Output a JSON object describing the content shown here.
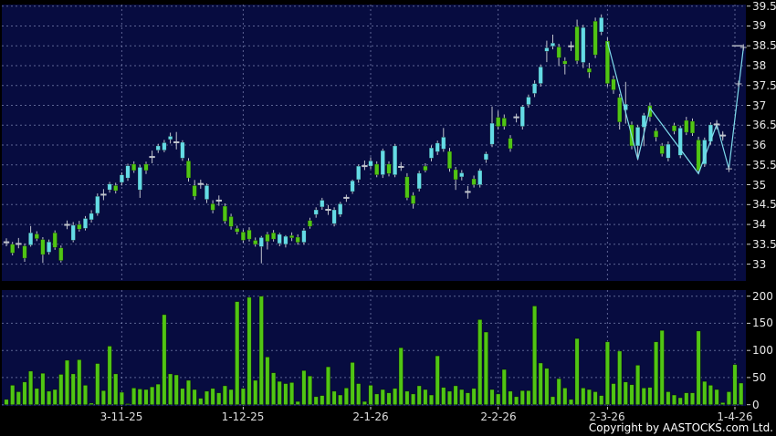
{
  "copyright": "Copyright by AASTOCKS.com Ltd.",
  "colors": {
    "background": "#000000",
    "pane_bg": "#070c40",
    "up": "#64dbe6",
    "down": "#50c514",
    "wick": "#c0c4cc",
    "doji": "#c0c4cc",
    "grid": "#8a93c0",
    "axis_text": "#e8e8e8",
    "date_text": "#dcdcdc",
    "line": "#7fdcec",
    "copyright_text": "#ffffff"
  },
  "chart_data": {
    "type": "candlestick",
    "title": "",
    "legend": "none",
    "grid": "dashed",
    "price_axis": {
      "max": 39.5,
      "min": 33,
      "step": 0.5,
      "labels": [
        "39.5",
        "39",
        "38.5",
        "38",
        "37.5",
        "37",
        "36.5",
        "36",
        "35.5",
        "35",
        "34.5",
        "34",
        "33.5",
        "33"
      ]
    },
    "volume_axis": {
      "max": 200,
      "min": 0,
      "step": 50,
      "labels": [
        "200",
        "150",
        "100",
        "50",
        "0"
      ]
    },
    "x_axis": {
      "labels": [
        {
          "text": "3-11-25",
          "index": 19
        },
        {
          "text": "1-12-25",
          "index": 39
        },
        {
          "text": "2-1-26",
          "index": 60
        },
        {
          "text": "2-2-26",
          "index": 81
        },
        {
          "text": "2-3-26",
          "index": 99
        },
        {
          "text": "1-4-26",
          "index": 120
        }
      ]
    },
    "candles": [
      [
        33.55,
        33.65,
        33.45,
        33.55,
        "j"
      ],
      [
        33.5,
        33.56,
        33.22,
        33.28,
        "d"
      ],
      [
        33.51,
        33.66,
        33.4,
        33.51,
        "j"
      ],
      [
        33.46,
        33.52,
        33.06,
        33.15,
        "d"
      ],
      [
        33.48,
        33.96,
        33.44,
        33.79,
        "u"
      ],
      [
        33.76,
        33.83,
        33.58,
        33.64,
        "d"
      ],
      [
        33.62,
        33.68,
        33.03,
        33.24,
        "d"
      ],
      [
        33.3,
        33.62,
        33.24,
        33.56,
        "u"
      ],
      [
        33.79,
        33.85,
        33.36,
        33.42,
        "d"
      ],
      [
        33.41,
        33.47,
        33.04,
        33.09,
        "d"
      ],
      [
        33.99,
        34.1,
        33.88,
        33.99,
        "j"
      ],
      [
        33.6,
        34.06,
        33.55,
        33.98,
        "u"
      ],
      [
        34.0,
        34.09,
        33.82,
        33.88,
        "d"
      ],
      [
        33.9,
        34.21,
        33.85,
        34.15,
        "u"
      ],
      [
        34.12,
        34.36,
        34.05,
        34.28,
        "u"
      ],
      [
        34.28,
        34.78,
        34.22,
        34.71,
        "u"
      ],
      [
        34.75,
        34.89,
        34.61,
        34.75,
        "j"
      ],
      [
        34.87,
        35.07,
        34.8,
        35.02,
        "u"
      ],
      [
        34.98,
        35.05,
        34.78,
        34.85,
        "d"
      ],
      [
        35.06,
        35.31,
        34.98,
        35.25,
        "u"
      ],
      [
        35.17,
        35.53,
        35.1,
        35.48,
        "u"
      ],
      [
        35.52,
        35.59,
        35.3,
        35.36,
        "d"
      ],
      [
        34.87,
        35.5,
        34.67,
        35.44,
        "u"
      ],
      [
        35.52,
        35.58,
        35.27,
        35.36,
        "d"
      ],
      [
        35.7,
        35.86,
        35.54,
        35.7,
        "j"
      ],
      [
        35.87,
        36.03,
        35.8,
        35.98,
        "u"
      ],
      [
        35.87,
        36.13,
        35.82,
        36.06,
        "u"
      ],
      [
        36.14,
        36.31,
        36.04,
        36.22,
        "u"
      ],
      [
        36.07,
        36.33,
        35.89,
        36.07,
        "j"
      ],
      [
        35.67,
        36.12,
        35.6,
        36.07,
        "u"
      ],
      [
        35.6,
        35.67,
        35.08,
        35.17,
        "d"
      ],
      [
        34.98,
        35.12,
        34.62,
        34.71,
        "d"
      ],
      [
        35.02,
        35.13,
        34.9,
        35.02,
        "j"
      ],
      [
        34.63,
        35.03,
        34.54,
        34.98,
        "u"
      ],
      [
        34.52,
        34.61,
        34.28,
        34.36,
        "d"
      ],
      [
        34.6,
        34.73,
        34.47,
        34.6,
        "j"
      ],
      [
        34.46,
        34.53,
        34.02,
        34.08,
        "d"
      ],
      [
        34.2,
        34.27,
        33.87,
        33.95,
        "d"
      ],
      [
        33.9,
        33.97,
        33.75,
        33.81,
        "d"
      ],
      [
        33.81,
        33.87,
        33.54,
        33.6,
        "d"
      ],
      [
        33.86,
        33.93,
        33.57,
        33.63,
        "d"
      ],
      [
        33.6,
        33.67,
        33.44,
        33.5,
        "d"
      ],
      [
        33.44,
        33.71,
        33.02,
        33.67,
        "u"
      ],
      [
        33.75,
        33.81,
        33.37,
        33.57,
        "d"
      ],
      [
        33.79,
        33.86,
        33.57,
        33.63,
        "d"
      ],
      [
        33.52,
        33.79,
        33.45,
        33.75,
        "u"
      ],
      [
        33.5,
        33.73,
        33.42,
        33.7,
        "u"
      ],
      [
        33.72,
        33.8,
        33.58,
        33.66,
        "d"
      ],
      [
        33.68,
        33.75,
        33.49,
        33.55,
        "d"
      ],
      [
        33.55,
        33.91,
        33.49,
        33.85,
        "u"
      ],
      [
        34.1,
        34.17,
        33.89,
        33.95,
        "d"
      ],
      [
        34.25,
        34.43,
        34.17,
        34.37,
        "u"
      ],
      [
        34.44,
        34.67,
        34.37,
        34.61,
        "u"
      ],
      [
        34.37,
        34.49,
        34.24,
        34.37,
        "j"
      ],
      [
        34.02,
        34.43,
        33.95,
        34.37,
        "u"
      ],
      [
        34.25,
        34.57,
        34.19,
        34.52,
        "u"
      ],
      [
        34.67,
        34.75,
        34.57,
        34.67,
        "j"
      ],
      [
        34.83,
        35.13,
        34.77,
        35.1,
        "u"
      ],
      [
        35.13,
        35.51,
        35.05,
        35.47,
        "u"
      ],
      [
        35.47,
        35.61,
        35.37,
        35.47,
        "j"
      ],
      [
        35.47,
        35.69,
        35.4,
        35.6,
        "u"
      ],
      [
        35.52,
        35.59,
        35.19,
        35.25,
        "d"
      ],
      [
        35.25,
        35.91,
        35.17,
        35.86,
        "u"
      ],
      [
        35.52,
        35.59,
        35.21,
        35.28,
        "d"
      ],
      [
        35.25,
        36.03,
        35.19,
        35.98,
        "u"
      ],
      [
        35.45,
        35.57,
        35.35,
        35.45,
        "j"
      ],
      [
        35.2,
        35.29,
        34.61,
        34.67,
        "d"
      ],
      [
        34.73,
        34.81,
        34.4,
        34.52,
        "d"
      ],
      [
        34.9,
        35.35,
        34.83,
        35.29,
        "u"
      ],
      [
        35.47,
        35.54,
        35.31,
        35.36,
        "d"
      ],
      [
        35.67,
        35.99,
        35.59,
        35.93,
        "u"
      ],
      [
        35.83,
        36.11,
        35.75,
        36.05,
        "u"
      ],
      [
        35.9,
        36.43,
        35.83,
        36.2,
        "u"
      ],
      [
        35.84,
        35.93,
        35.33,
        35.41,
        "d"
      ],
      [
        35.38,
        35.45,
        34.87,
        35.13,
        "d"
      ],
      [
        35.2,
        35.37,
        35.11,
        35.3,
        "u"
      ],
      [
        34.82,
        34.97,
        34.65,
        34.82,
        "j"
      ],
      [
        35.15,
        35.23,
        34.93,
        35.0,
        "d"
      ],
      [
        35.0,
        35.41,
        34.93,
        35.36,
        "u"
      ],
      [
        35.63,
        35.83,
        35.55,
        35.78,
        "u"
      ],
      [
        36.02,
        36.97,
        35.95,
        36.55,
        "u"
      ],
      [
        36.7,
        36.86,
        36.39,
        36.47,
        "d"
      ],
      [
        36.68,
        36.77,
        36.39,
        36.47,
        "d"
      ],
      [
        36.17,
        36.25,
        35.83,
        35.91,
        "d"
      ],
      [
        36.7,
        36.79,
        36.57,
        36.7,
        "j"
      ],
      [
        36.47,
        37.01,
        36.39,
        36.97,
        "u"
      ],
      [
        37.02,
        37.27,
        36.94,
        37.21,
        "u"
      ],
      [
        37.3,
        37.63,
        37.21,
        37.55,
        "u"
      ],
      [
        37.55,
        38.03,
        37.47,
        37.97,
        "u"
      ],
      [
        38.36,
        38.63,
        38.09,
        38.45,
        "u"
      ],
      [
        38.49,
        38.78,
        38.41,
        38.57,
        "u"
      ],
      [
        38.47,
        38.55,
        37.99,
        38.2,
        "d"
      ],
      [
        38.12,
        38.21,
        37.78,
        38.04,
        "d"
      ],
      [
        38.49,
        38.61,
        38.37,
        38.49,
        "j"
      ],
      [
        38.98,
        39.16,
        38.04,
        38.12,
        "d"
      ],
      [
        38.08,
        39.03,
        37.94,
        38.96,
        "u"
      ],
      [
        37.93,
        38.07,
        37.69,
        37.83,
        "d"
      ],
      [
        39.12,
        39.21,
        38.19,
        38.27,
        "d"
      ],
      [
        38.85,
        39.29,
        38.77,
        39.21,
        "u"
      ],
      [
        38.62,
        38.71,
        37.47,
        37.55,
        "d"
      ],
      [
        37.66,
        37.75,
        37.29,
        37.39,
        "d"
      ],
      [
        37.2,
        37.29,
        36.39,
        36.58,
        "d"
      ],
      [
        36.88,
        37.59,
        36.54,
        37.03,
        "u"
      ],
      [
        36.51,
        36.59,
        35.89,
        35.98,
        "d"
      ],
      [
        35.98,
        36.51,
        35.62,
        36.45,
        "u"
      ],
      [
        36.45,
        36.81,
        35.97,
        36.75,
        "u"
      ],
      [
        36.99,
        37.07,
        36.59,
        36.71,
        "d"
      ],
      [
        36.36,
        36.43,
        36.09,
        36.2,
        "d"
      ],
      [
        35.98,
        36.05,
        35.71,
        35.78,
        "d"
      ],
      [
        35.67,
        36.09,
        35.59,
        36.02,
        "u"
      ],
      [
        36.49,
        36.56,
        36.27,
        36.35,
        "d"
      ],
      [
        35.74,
        36.49,
        35.67,
        36.43,
        "u"
      ],
      [
        36.62,
        36.71,
        36.25,
        36.32,
        "d"
      ],
      [
        36.6,
        36.67,
        36.23,
        36.3,
        "d"
      ],
      [
        36.13,
        36.21,
        35.27,
        35.36,
        "d"
      ],
      [
        35.52,
        36.19,
        35.45,
        36.13,
        "u"
      ],
      [
        36.09,
        36.57,
        36.01,
        36.51,
        "u"
      ],
      [
        36.52,
        36.63,
        36.39,
        36.52,
        "j"
      ],
      [
        36.24,
        36.35,
        36.11,
        36.24,
        "j"
      ],
      [
        0,
        0,
        0,
        0,
        "n"
      ],
      [
        0,
        0,
        0,
        0,
        "n"
      ],
      [
        0,
        0,
        0,
        0,
        "n"
      ]
    ],
    "volumes": [
      10,
      36,
      24,
      42,
      62,
      30,
      58,
      25,
      28,
      56,
      82,
      57,
      83,
      36,
      3,
      76,
      26,
      108,
      57,
      23,
      2,
      31,
      29,
      28,
      33,
      38,
      166,
      57,
      55,
      30,
      45,
      28,
      12,
      25,
      30,
      22,
      35,
      28,
      190,
      30,
      198,
      45,
      200,
      88,
      59,
      43,
      39,
      41,
      6,
      63,
      53,
      15,
      17,
      70,
      25,
      18,
      31,
      78,
      39,
      6,
      36,
      20,
      28,
      22,
      30,
      105,
      25,
      20,
      35,
      28,
      18,
      90,
      32,
      25,
      35,
      28,
      22,
      30,
      157,
      134,
      28,
      20,
      65,
      25,
      15,
      26,
      26,
      182,
      77,
      67,
      15,
      48,
      31,
      10,
      122,
      31,
      28,
      24,
      17,
      116,
      39,
      99,
      42,
      37,
      73,
      31,
      32,
      116,
      137,
      24,
      18,
      13,
      22,
      22,
      136,
      43,
      36,
      28,
      4,
      24,
      74,
      40
    ],
    "line_overlay": {
      "points": [
        [
          99,
          38.6
        ],
        [
          104,
          35.64
        ],
        [
          106,
          36.93
        ],
        [
          114,
          35.28
        ],
        [
          117,
          36.52
        ],
        [
          119,
          35.4
        ],
        [
          121.4,
          38.45
        ]
      ],
      "plus_markers": [
        [
          117,
          36.52
        ],
        [
          118,
          36.24
        ],
        [
          119,
          35.4
        ],
        [
          120.6,
          37.54
        ],
        [
          121.4,
          38.46
        ]
      ],
      "dash_markers": [
        [
          120.4,
          38.5
        ]
      ]
    }
  }
}
